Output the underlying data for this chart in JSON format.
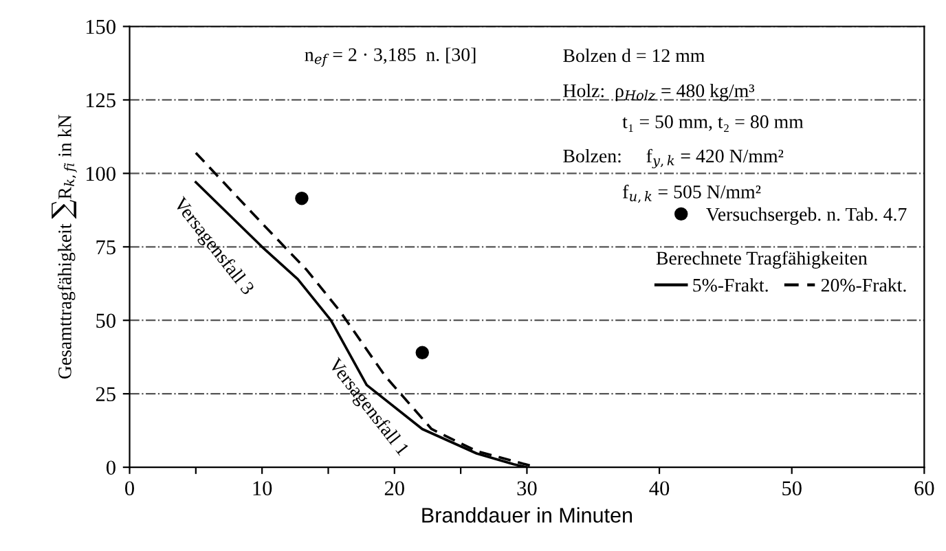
{
  "chart_data": {
    "type": "line",
    "xlabel": "Branddauer in Minuten",
    "ylabel": "Gesamttragfähigkeit ∑R$_{k,fi}$ in kN",
    "xlim": [
      0,
      60
    ],
    "ylim": [
      0,
      150
    ],
    "xticks": [
      0,
      {
        "value": 5,
        "label": null
      },
      10,
      {
        "value": 15,
        "label": null
      },
      20,
      {
        "value": 25,
        "label": null
      },
      30,
      40,
      50,
      60
    ],
    "yticks": [
      0,
      25,
      50,
      75,
      100,
      125,
      150
    ],
    "grid": "y",
    "legend": "right",
    "legend_title": "Berechnete Tragfähigkeiten",
    "series": [
      {
        "name": "Versuchsergeb. n. Tab. 4.7",
        "type": "scatter",
        "color": "#000000",
        "marker": "circle",
        "x": [
          13,
          22.1
        ],
        "values": [
          91.5,
          39
        ]
      },
      {
        "name": "5%-Frakt.",
        "color": "#000000",
        "line_style": "solid",
        "x": [
          5,
          10,
          12.7,
          15.2,
          17.9,
          22.1,
          26.2,
          29,
          30
        ],
        "values": [
          97,
          75,
          64,
          50,
          28,
          13,
          4.7,
          1,
          0
        ]
      },
      {
        "name": "20%-Frakt.",
        "color": "#000000",
        "line_style": "dashed",
        "x": [
          5,
          10,
          13.4,
          15.9,
          19.3,
          22.8,
          26.2,
          30.7
        ],
        "values": [
          107,
          83,
          67,
          53,
          31,
          13,
          5.5,
          0
        ]
      }
    ],
    "annotations": [
      "n$_{ef}$ = 2 · 3,185  n. [30]",
      "Bolzen d = 12 mm",
      "Holz:  ρ$_{Holz}$ = 480 kg/m³",
      "t₁ = 50 mm, t₂ = 80 mm",
      "Bolzen:     f$_{y,k}$ = 420 N/mm²",
      "f$_{u,k}$ = 505 N/mm²",
      "Versagensfall 3",
      "Versagensfall 1"
    ]
  }
}
